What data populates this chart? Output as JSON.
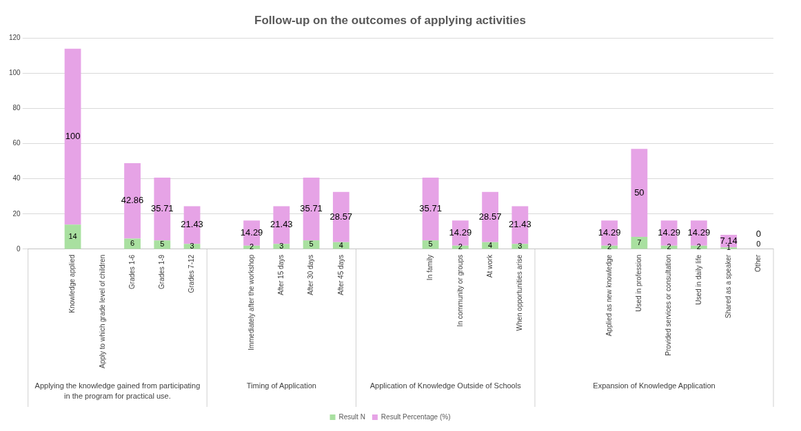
{
  "chart_data": {
    "type": "bar",
    "title": "Follow-up on the outcomes of applying activities",
    "categories": [
      null,
      "Knowledge applied",
      "Apply to which grade level of children",
      "Grades 1-6",
      "Grades 1-9",
      "Grades 7-12",
      null,
      "Immediately after the workshop",
      "After 15 days",
      "After 30 days",
      "After 45 days",
      null,
      null,
      "In family",
      "In community or groups",
      "At work",
      "When opportunities arise",
      null,
      null,
      "Applied as new knowledge",
      "Used in profession",
      "Provided services or consultation",
      "Used in daily life",
      "Shared as a speaker",
      "Other"
    ],
    "series": [
      {
        "name": "Result N",
        "color": "#a9e0a0",
        "values": [
          null,
          14,
          null,
          6,
          5,
          3,
          null,
          2,
          3,
          5,
          4,
          null,
          null,
          5,
          2,
          4,
          3,
          null,
          null,
          2,
          7,
          2,
          2,
          1,
          0
        ]
      },
      {
        "name": "Result Percentage (%)",
        "color": "#e6a3e6",
        "values": [
          null,
          100,
          null,
          42.86,
          35.71,
          21.43,
          null,
          14.29,
          21.43,
          35.71,
          28.57,
          null,
          null,
          35.71,
          14.29,
          28.57,
          21.43,
          null,
          null,
          14.29,
          50,
          14.29,
          14.29,
          7.14,
          0
        ]
      }
    ],
    "stacked": true,
    "ylim": [
      0,
      120
    ],
    "yticks": [
      0,
      20,
      40,
      60,
      80,
      100,
      120
    ],
    "grid": "y",
    "legend": "bottom",
    "data_labels": true,
    "annotations": [
      "Applying the knowledge gained from participating in the program for practical use.",
      "Timing of Application",
      "Application of Knowledge Outside of Schools",
      "Expansion of Knowledge Application"
    ]
  }
}
